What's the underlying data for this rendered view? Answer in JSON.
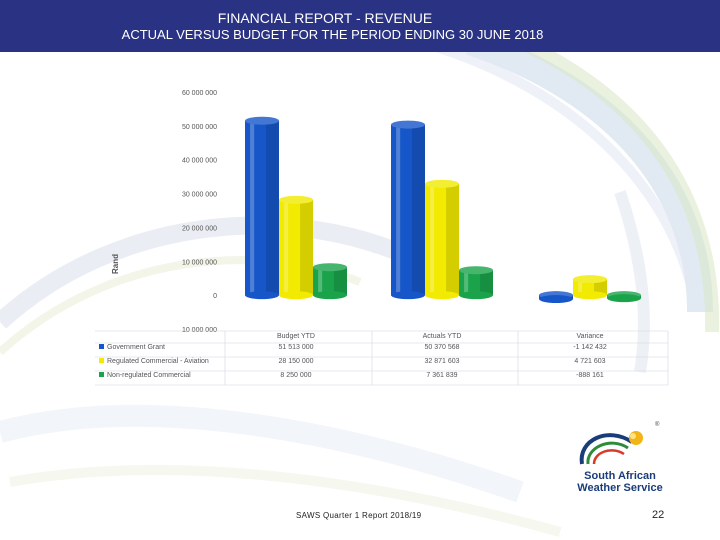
{
  "header": {
    "title_line1": "FINANCIAL REPORT - REVENUE",
    "title_line2": "ACTUAL VERSUS BUDGET FOR THE PERIOD ENDING 30 JUNE 2018"
  },
  "footer": {
    "report_label": "SAWS Quarter 1 Report 2018/19",
    "page_number": "22"
  },
  "logo": {
    "line1": "South African",
    "line2": "Weather Service"
  },
  "colors": {
    "header_bg": "#2a3283",
    "government_grant": "#1656c8",
    "regulated_commercial": "#f2ea00",
    "non_regulated_commercial": "#1aa34a"
  },
  "chart_data": {
    "type": "bar",
    "ylabel": "Rand",
    "ylim": [
      -10000000,
      60000000
    ],
    "y_ticks": [
      {
        "value": 60000000,
        "label": "60 000 000"
      },
      {
        "value": 50000000,
        "label": "50 000 000"
      },
      {
        "value": 40000000,
        "label": "40 000 000"
      },
      {
        "value": 30000000,
        "label": "30 000 000"
      },
      {
        "value": 20000000,
        "label": "20 000 000"
      },
      {
        "value": 10000000,
        "label": "10 000 000"
      },
      {
        "value": 0,
        "label": "0"
      },
      {
        "value": -10000000,
        "label": "10 000 000"
      }
    ],
    "categories": [
      "Budget YTD",
      "Actuals YTD",
      "Variance"
    ],
    "series": [
      {
        "name": "Government Grant",
        "color": "#1656c8",
        "values": [
          51513000,
          50370568,
          -1142432
        ],
        "labels": [
          "51 513 000",
          "50 370 568",
          "-1 142 432"
        ]
      },
      {
        "name": "Regulated Commercial - Aviation",
        "color": "#f2ea00",
        "values": [
          28150000,
          32871603,
          4721603
        ],
        "labels": [
          "28 150 000",
          "32 871 603",
          "4 721 603"
        ]
      },
      {
        "name": "Non-regulated Commercial",
        "color": "#1aa34a",
        "values": [
          8250000,
          7361839,
          -888161
        ],
        "labels": [
          "8 250 000",
          "7 361 839",
          "-888 161"
        ]
      }
    ],
    "legend_placement": "table-bottom-left",
    "grid": false
  }
}
